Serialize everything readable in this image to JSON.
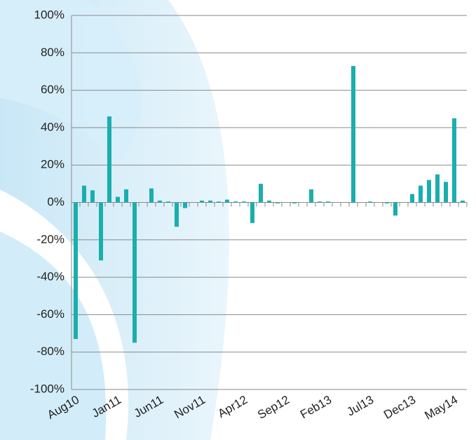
{
  "chart_data": {
    "type": "bar",
    "color": "#1aaeae",
    "categories": [
      "Aug10",
      null,
      null,
      null,
      null,
      "Jan11",
      null,
      null,
      null,
      null,
      "Jun11",
      null,
      null,
      null,
      null,
      "Nov11",
      null,
      null,
      null,
      null,
      "Apr12",
      null,
      null,
      null,
      null,
      "Sep12",
      null,
      null,
      null,
      null,
      "Feb13",
      null,
      null,
      null,
      null,
      "Jul13",
      null,
      null,
      null,
      null,
      "Dec13",
      null,
      null,
      null,
      null,
      "May14",
      null
    ],
    "values": [
      -73,
      9,
      6.5,
      -31,
      46,
      3,
      7,
      -75,
      0,
      7.5,
      1,
      0.5,
      -13,
      -3,
      0,
      1,
      1,
      0.5,
      1.5,
      0.5,
      0.5,
      -11,
      10,
      1,
      -0.5,
      0,
      -0.5,
      0,
      7,
      0.5,
      0.5,
      0,
      0,
      73,
      0,
      0.5,
      0,
      -0.5,
      -7,
      0,
      4.5,
      9,
      12,
      15,
      11,
      45,
      1
    ],
    "ylim": [
      -100,
      100
    ],
    "yticks": [
      {
        "value": -100,
        "label": "-100%"
      },
      {
        "value": -80,
        "label": "-80%"
      },
      {
        "value": -60,
        "label": "-60%"
      },
      {
        "value": -40,
        "label": "-40%"
      },
      {
        "value": -20,
        "label": "-20%"
      },
      {
        "value": 0,
        "label": "0%"
      },
      {
        "value": 20,
        "label": "20%"
      },
      {
        "value": 40,
        "label": "40%"
      },
      {
        "value": 60,
        "label": "60%"
      },
      {
        "value": 80,
        "label": "80%"
      },
      {
        "value": 100,
        "label": "100%"
      }
    ],
    "grid": true
  }
}
